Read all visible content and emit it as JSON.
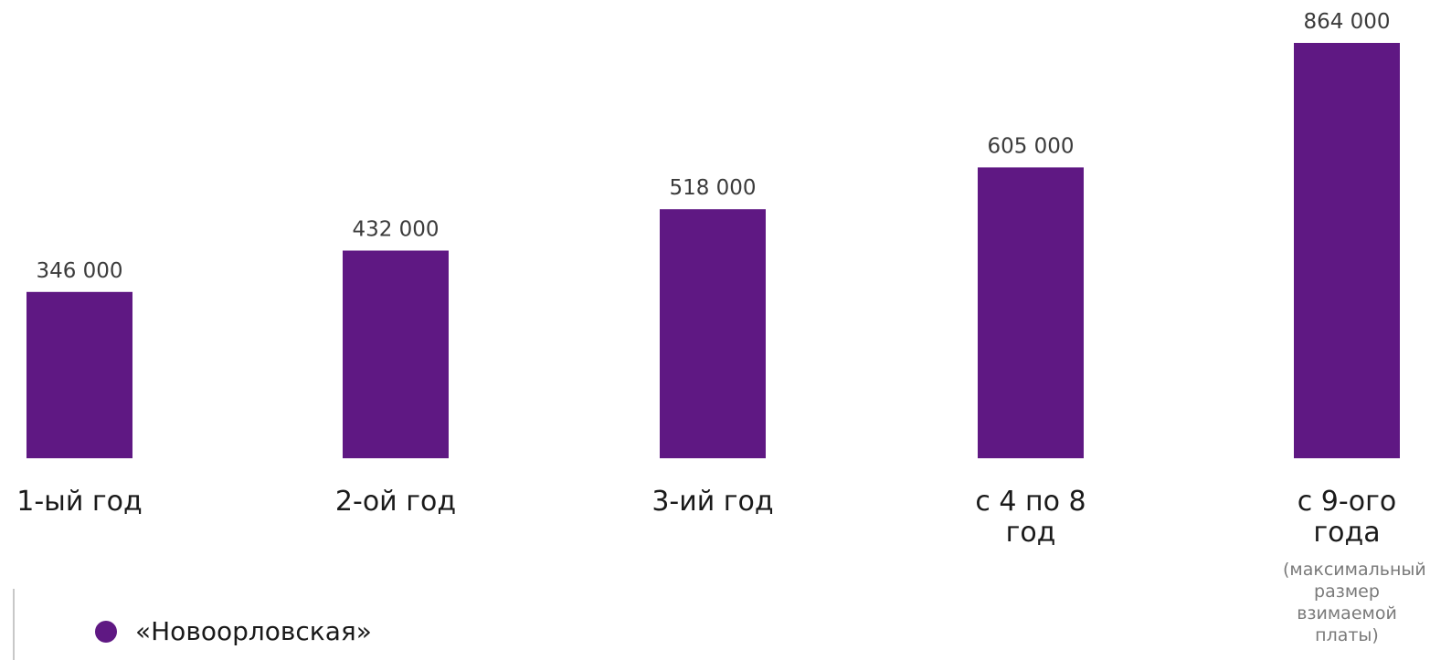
{
  "chart_data": {
    "type": "bar",
    "categories": [
      "1-ый год",
      "2-ой год",
      "3-ий год",
      "с 4 по 8 год",
      "с 9-ого года"
    ],
    "category_note": "(максимальный размер взимаемой платы)",
    "series": [
      {
        "name": "«Новоорловская»",
        "values": [
          346000,
          432000,
          518000,
          605000,
          864000
        ],
        "value_labels": [
          "346 000",
          "432 000",
          "518 000",
          "605 000",
          "864 000"
        ]
      }
    ],
    "bar_color": "#5f1883",
    "grid": false,
    "legend_position": "bottom-left"
  },
  "legend": {
    "items": [
      {
        "label": "«Новоорловская»",
        "color": "#5f1883"
      }
    ]
  }
}
